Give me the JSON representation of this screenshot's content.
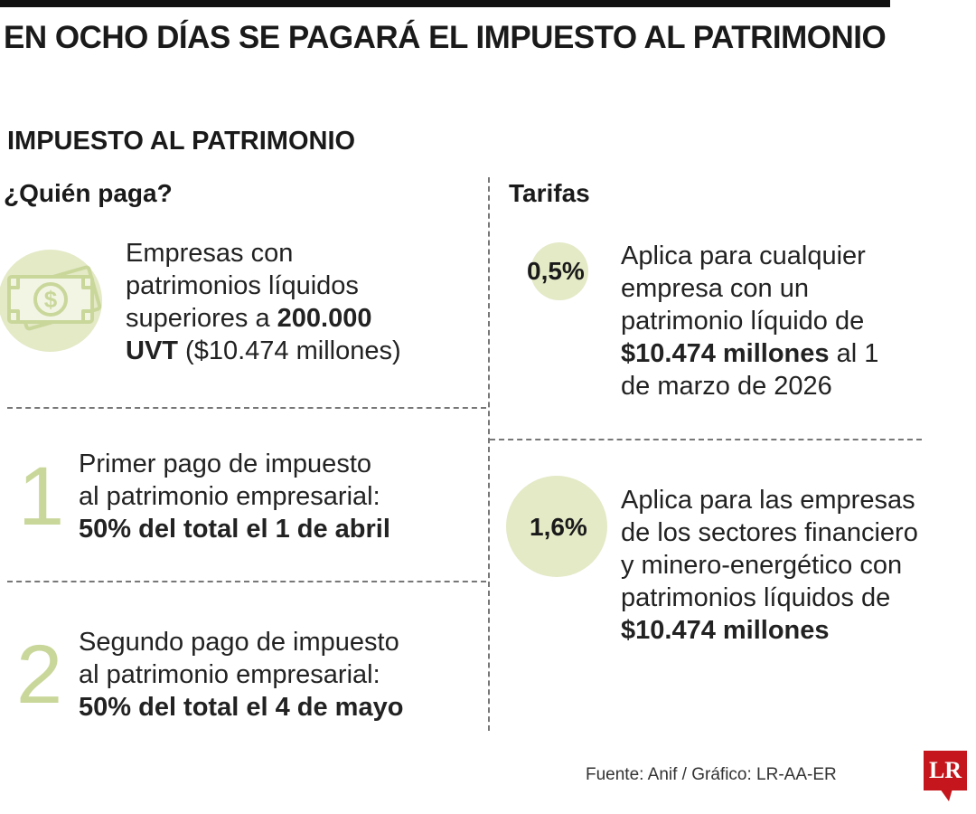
{
  "headline": "EN OCHO DÍAS SE PAGARÁ EL IMPUESTO AL PATRIMONIO",
  "section_title": "IMPUESTO AL PATRIMONIO",
  "left": {
    "heading": "¿Quién paga?",
    "who": {
      "icon": "money-bill-icon",
      "text_1": "Empresas con",
      "text_2": "patrimonios líquidos",
      "text_3": "superiores a ",
      "bold_1": "200.000",
      "bold_2": "UVT",
      "text_4": " ($10.474 millones)"
    },
    "payments": [
      {
        "number": "1",
        "line_1": "Primer pago de impuesto",
        "line_2": "al patrimonio empresarial:",
        "bold": "50% del total el 1 de abril"
      },
      {
        "number": "2",
        "line_1": "Segundo pago de impuesto",
        "line_2": "al patrimonio empresarial:",
        "bold": "50% del total el 4 de mayo"
      }
    ]
  },
  "right": {
    "heading": "Tarifas",
    "rates": [
      {
        "rate": "0,5%",
        "line_1": "Aplica para cualquier",
        "line_2": "empresa con un",
        "line_3": "patrimonio líquido de",
        "bold": "$10.474 millones",
        "line_4_rest": " al 1",
        "line_5": "de marzo de 2026"
      },
      {
        "rate": "1,6%",
        "line_1": "Aplica para las empresas",
        "line_2": "de los sectores financiero",
        "line_3": "y minero-energético con",
        "line_4": "patrimonios líquidos de",
        "bold": "$10.474 millones"
      }
    ]
  },
  "footer": {
    "source": "Fuente: Anif / Gráfico: LR-AA-ER",
    "logo": "LR"
  },
  "colors": {
    "accent_green": "#c9d79b",
    "circle_fill": "#e4e9c6",
    "logo_red": "#c4161c"
  }
}
